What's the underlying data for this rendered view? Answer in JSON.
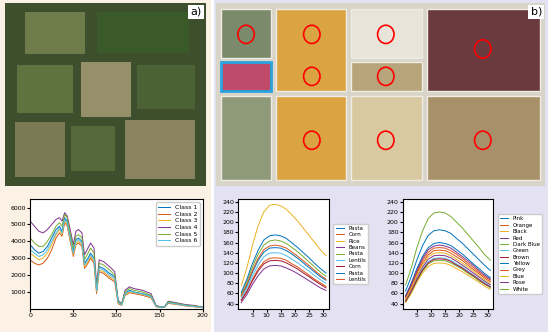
{
  "panel_labels": [
    "a)",
    "b)"
  ],
  "chart_data": [
    {
      "type": "line",
      "xlim": [
        0,
        200
      ],
      "xticks": [
        0,
        50,
        100,
        150,
        200
      ],
      "ylim": [
        0,
        6500
      ],
      "yticks": [
        1000,
        2000,
        3000,
        4000,
        5000,
        6000
      ],
      "grid": false,
      "legend": "upper right",
      "x": [
        0,
        5,
        10,
        15,
        20,
        25,
        30,
        34,
        37,
        40,
        43,
        46,
        50,
        53,
        56,
        60,
        63,
        67,
        70,
        74,
        77,
        80,
        85,
        92,
        98,
        102,
        106,
        110,
        115,
        120,
        130,
        140,
        146,
        152,
        156,
        160,
        170,
        180,
        190,
        200
      ],
      "series": [
        {
          "name": "Class 1",
          "color": "#0072bd",
          "values": [
            3800,
            3500,
            3300,
            3400,
            3700,
            4200,
            4700,
            4900,
            4600,
            5400,
            5200,
            4400,
            3400,
            4100,
            4200,
            4000,
            2700,
            3000,
            3300,
            3000,
            1100,
            2500,
            2400,
            2100,
            1900,
            400,
            250,
            900,
            1100,
            1000,
            900,
            750,
            150,
            80,
            120,
            380,
            300,
            200,
            150,
            80
          ]
        },
        {
          "name": "Class 2",
          "color": "#d95319",
          "values": [
            2900,
            2700,
            2600,
            2700,
            3000,
            3500,
            4200,
            4500,
            4300,
            5100,
            4900,
            4100,
            3100,
            3800,
            3900,
            3700,
            2400,
            2700,
            3000,
            2700,
            900,
            2200,
            2100,
            1800,
            1600,
            300,
            200,
            800,
            950,
            900,
            800,
            650,
            120,
            60,
            100,
            320,
            250,
            170,
            120,
            60
          ]
        },
        {
          "name": "Class 3",
          "color": "#edb120",
          "values": [
            3300,
            3100,
            2900,
            3000,
            3300,
            3800,
            4400,
            4700,
            4400,
            5200,
            5000,
            4200,
            3200,
            3900,
            4000,
            3800,
            2500,
            2800,
            3100,
            2800,
            1000,
            2300,
            2200,
            1900,
            1700,
            350,
            220,
            850,
            1000,
            950,
            850,
            700,
            130,
            70,
            110,
            350,
            270,
            180,
            130,
            70
          ]
        },
        {
          "name": "Class 4",
          "color": "#7e2f8e",
          "values": [
            5200,
            4900,
            4600,
            4500,
            4700,
            5000,
            5300,
            5400,
            5200,
            5700,
            5500,
            4800,
            3800,
            4600,
            4700,
            4500,
            3200,
            3600,
            3900,
            3600,
            1400,
            2900,
            2800,
            2500,
            2200,
            500,
            300,
            1100,
            1300,
            1200,
            1100,
            900,
            200,
            100,
            150,
            450,
            350,
            250,
            200,
            100
          ]
        },
        {
          "name": "Class 5",
          "color": "#77ac30",
          "values": [
            4200,
            3900,
            3700,
            3700,
            4000,
            4400,
            4900,
            5100,
            4900,
            5600,
            5400,
            4600,
            3600,
            4300,
            4400,
            4200,
            2900,
            3300,
            3600,
            3300,
            1200,
            2700,
            2600,
            2300,
            2000,
            450,
            280,
            1000,
            1200,
            1100,
            1000,
            800,
            170,
            90,
            130,
            420,
            320,
            220,
            170,
            90
          ]
        },
        {
          "name": "Class 6",
          "color": "#4dbeee",
          "values": [
            3500,
            3300,
            3100,
            3200,
            3500,
            4000,
            4500,
            4800,
            4500,
            5300,
            5100,
            4300,
            3300,
            4000,
            4100,
            3900,
            2600,
            2900,
            3200,
            2900,
            1050,
            2400,
            2300,
            2000,
            1800,
            380,
            230,
            880,
            1050,
            980,
            880,
            720,
            140,
            75,
            115,
            360,
            280,
            190,
            140,
            75
          ]
        }
      ]
    },
    {
      "type": "line",
      "xlim": [
        0,
        32
      ],
      "xticks": [
        5,
        10,
        15,
        20,
        25,
        30
      ],
      "ylim": [
        30,
        245
      ],
      "yticks": [
        40,
        60,
        80,
        100,
        120,
        140,
        160,
        180,
        200,
        220,
        240
      ],
      "grid": false,
      "legend": "right",
      "x": [
        1,
        3,
        5,
        7,
        9,
        11,
        13,
        15,
        17,
        19,
        21,
        23,
        25,
        27,
        29,
        31
      ],
      "series": [
        {
          "name": "Pasta",
          "color": "#0072bd",
          "values": [
            55,
            75,
            102,
            125,
            141,
            149,
            150,
            149,
            144,
            137,
            129,
            120,
            111,
            102,
            93,
            86
          ]
        },
        {
          "name": "Corn",
          "color": "#d95319",
          "values": [
            48,
            65,
            88,
            108,
            122,
            129,
            130,
            129,
            125,
            118,
            112,
            104,
            96,
            88,
            81,
            74
          ]
        },
        {
          "name": "Rice",
          "color": "#edb120",
          "values": [
            75,
            110,
            155,
            193,
            220,
            233,
            235,
            232,
            225,
            214,
            202,
            188,
            174,
            160,
            146,
            134
          ]
        },
        {
          "name": "Beans",
          "color": "#7e2f8e",
          "values": [
            42,
            58,
            78,
            95,
            108,
            114,
            115,
            114,
            110,
            105,
            99,
            92,
            85,
            78,
            71,
            66
          ]
        },
        {
          "name": "Pasta",
          "color": "#77ac30",
          "values": [
            58,
            83,
            112,
            137,
            155,
            163,
            165,
            163,
            158,
            150,
            142,
            132,
            122,
            112,
            102,
            94
          ]
        },
        {
          "name": "Lentils",
          "color": "#4dbeee",
          "values": [
            50,
            70,
            95,
            116,
            132,
            139,
            140,
            139,
            134,
            127,
            120,
            112,
            104,
            95,
            87,
            80
          ]
        },
        {
          "name": "Corn",
          "color": "#a2142f",
          "values": [
            46,
            63,
            85,
            104,
            118,
            124,
            125,
            124,
            120,
            114,
            108,
            100,
            93,
            85,
            78,
            71
          ]
        },
        {
          "name": "Pasta",
          "color": "#0072bd",
          "values": [
            62,
            88,
            119,
            145,
            165,
            173,
            175,
            173,
            168,
            159,
            150,
            140,
            130,
            119,
            109,
            100
          ]
        },
        {
          "name": "Lentils",
          "color": "#d95319",
          "values": [
            55,
            78,
            105,
            129,
            146,
            153,
            155,
            153,
            149,
            141,
            133,
            124,
            115,
            105,
            96,
            88
          ]
        }
      ]
    },
    {
      "type": "line",
      "xlim": [
        0,
        32
      ],
      "xticks": [
        5,
        10,
        15,
        20,
        25,
        30
      ],
      "ylim": [
        30,
        245
      ],
      "yticks": [
        40,
        60,
        80,
        100,
        120,
        140,
        160,
        180,
        200,
        220,
        240
      ],
      "grid": false,
      "legend": "right",
      "x": [
        1,
        3,
        5,
        7,
        9,
        11,
        13,
        15,
        17,
        19,
        21,
        23,
        25,
        27,
        29,
        31
      ],
      "series": [
        {
          "name": "Pink",
          "color": "#0072bd",
          "values": [
            56,
            80,
            109,
            133,
            150,
            158,
            160,
            158,
            154,
            146,
            138,
            128,
            118,
            109,
            99,
            91
          ]
        },
        {
          "name": "Orange",
          "color": "#d95319",
          "values": [
            53,
            75,
            102,
            125,
            141,
            149,
            150,
            149,
            144,
            137,
            129,
            120,
            111,
            102,
            93,
            86
          ]
        },
        {
          "name": "Black",
          "color": "#edb120",
          "values": [
            42,
            60,
            82,
            100,
            113,
            119,
            120,
            119,
            115,
            109,
            103,
            96,
            89,
            82,
            74,
            68
          ]
        },
        {
          "name": "Red",
          "color": "#7e2f8e",
          "values": [
            47,
            68,
            92,
            112,
            127,
            134,
            135,
            134,
            130,
            123,
            116,
            108,
            100,
            92,
            84,
            77
          ]
        },
        {
          "name": "Dark Blue",
          "color": "#77ac30",
          "values": [
            44,
            63,
            85,
            104,
            118,
            124,
            125,
            124,
            120,
            114,
            108,
            100,
            93,
            85,
            78,
            71
          ]
        },
        {
          "name": "Green",
          "color": "#4dbeee",
          "values": [
            46,
            65,
            88,
            108,
            122,
            129,
            130,
            129,
            125,
            118,
            112,
            104,
            96,
            88,
            81,
            74
          ]
        },
        {
          "name": "Brown",
          "color": "#a2142f",
          "values": [
            45,
            64,
            87,
            106,
            120,
            127,
            128,
            127,
            123,
            116,
            110,
            102,
            95,
            87,
            79,
            73
          ]
        },
        {
          "name": "Yellow",
          "color": "#0072bd",
          "values": [
            65,
            93,
            126,
            154,
            174,
            183,
            185,
            183,
            178,
            168,
            159,
            148,
            137,
            126,
            115,
            105
          ]
        },
        {
          "name": "Grey",
          "color": "#d95319",
          "values": [
            51,
            73,
            99,
            120,
            136,
            144,
            145,
            144,
            139,
            132,
            125,
            116,
            107,
            99,
            90,
            83
          ]
        },
        {
          "name": "Blue",
          "color": "#edb120",
          "values": [
            49,
            70,
            95,
            116,
            132,
            139,
            140,
            139,
            134,
            127,
            120,
            112,
            104,
            95,
            87,
            80
          ]
        },
        {
          "name": "Rose",
          "color": "#7e2f8e",
          "values": [
            54,
            78,
            105,
            129,
            146,
            153,
            155,
            153,
            149,
            141,
            133,
            124,
            115,
            105,
            96,
            88
          ]
        },
        {
          "name": "White",
          "color": "#77ac30",
          "values": [
            77,
            110,
            150,
            183,
            207,
            218,
            220,
            218,
            211,
            200,
            189,
            176,
            163,
            150,
            136,
            125
          ]
        }
      ]
    }
  ]
}
